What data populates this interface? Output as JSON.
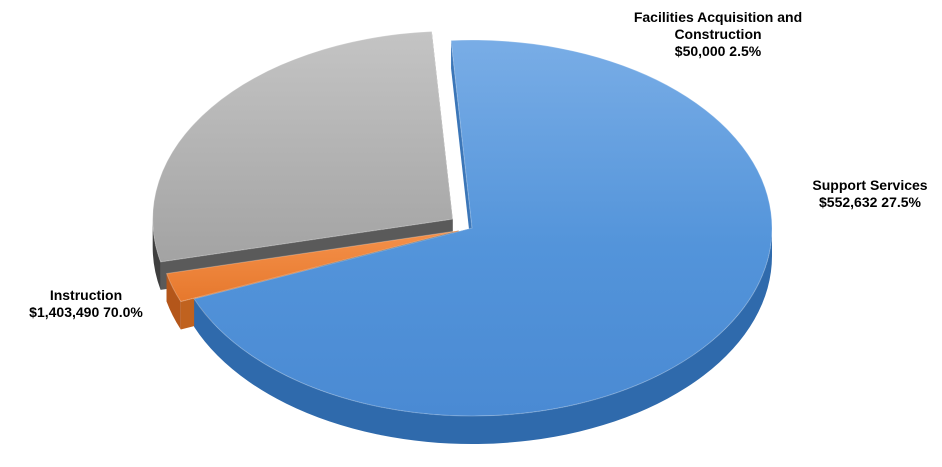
{
  "chart_data": {
    "type": "pie",
    "style": "3d-exploded",
    "slices": [
      {
        "name": "Instruction",
        "amount": "$1,403,490",
        "percent": "70.0%",
        "value": 1403490,
        "color": "#4f8fd6",
        "label_lines": [
          "Instruction",
          "$1,403,490  70.0%"
        ]
      },
      {
        "name": "Facilities Acquisition and Construction",
        "amount": "$50,000",
        "percent": "2.5%",
        "value": 50000,
        "color": "#ed7d31",
        "label_lines": [
          "Facilities Acquisition and",
          "Construction",
          "$50,000  2.5%"
        ]
      },
      {
        "name": "Support Services",
        "amount": "$552,632",
        "percent": "27.5%",
        "value": 552632,
        "color": "#a5a5a5",
        "label_lines": [
          "Support Services",
          "$552,632  27.5%"
        ]
      }
    ],
    "legend": "none"
  }
}
